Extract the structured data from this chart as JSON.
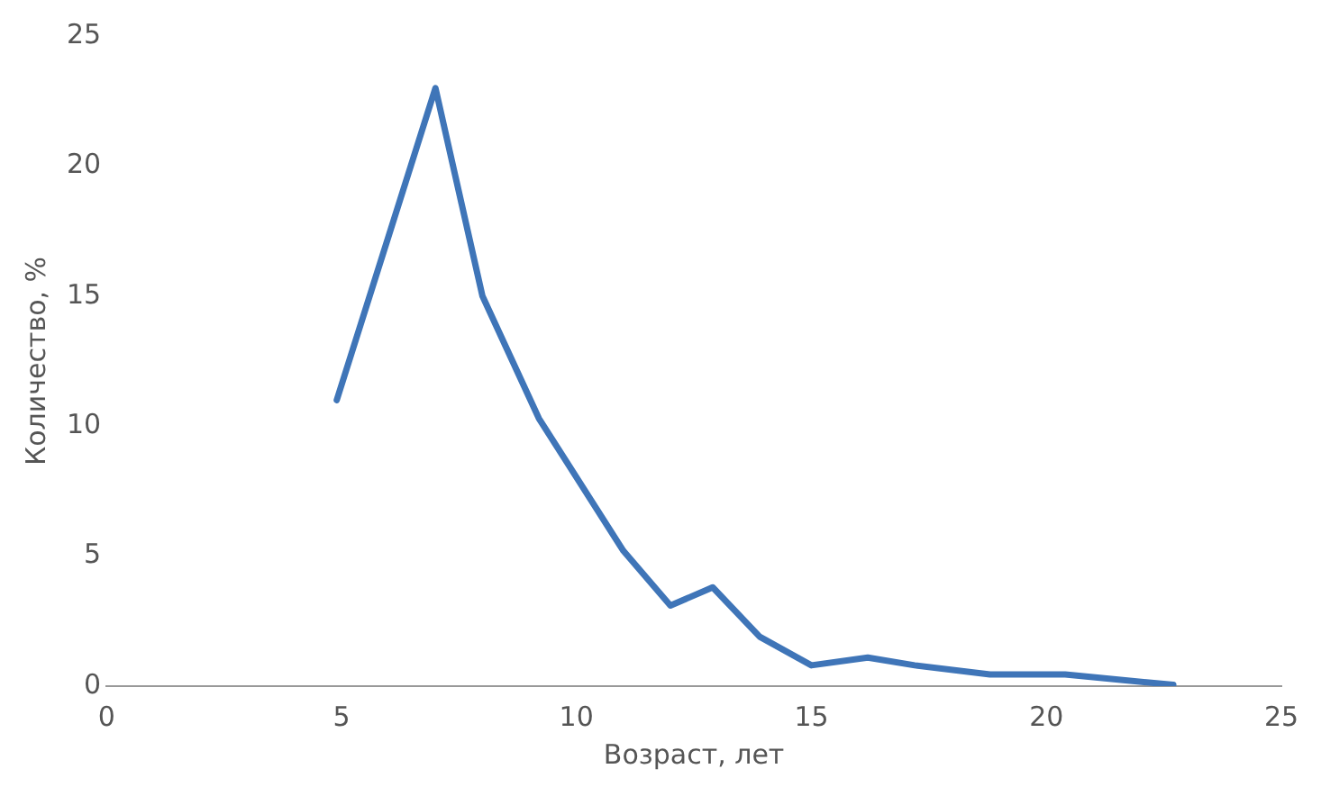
{
  "chart_data": {
    "type": "line",
    "xlabel": "Возраст, лет",
    "ylabel": "Количество, %",
    "x": [
      4.9,
      7,
      8,
      9.2,
      11,
      12,
      12.9,
      13.9,
      15,
      16.2,
      17.2,
      18.8,
      20.4,
      22.7
    ],
    "series": [
      {
        "color": "#3f75b8",
        "values": [
          11,
          23,
          15,
          10.3,
          5.2,
          3.1,
          3.8,
          1.9,
          0.8,
          1.1,
          0.8,
          0.45,
          0.45,
          0.05
        ]
      }
    ],
    "xlim": [
      0,
      25
    ],
    "xticks": [
      0,
      5,
      10,
      15,
      20,
      25
    ],
    "ylim": [
      0,
      25
    ],
    "yticks": [
      0,
      5,
      10,
      15,
      20,
      25
    ],
    "grid": false,
    "legend": false,
    "marker": "none",
    "line_style": "solid"
  }
}
